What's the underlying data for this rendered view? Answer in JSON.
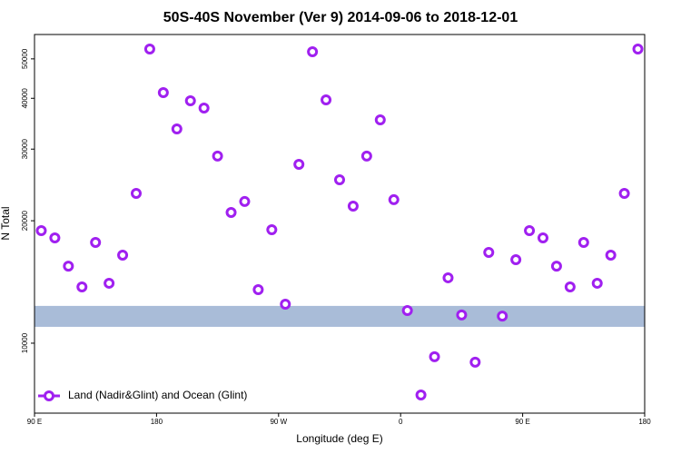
{
  "chart_data": {
    "type": "scatter",
    "title": "50S-40S November (Ver 9)   2014-09-06 to 2018-12-01",
    "x_label": "Longitude (deg E)",
    "y_label": "N Total",
    "y_log": true,
    "xlim": [
      90,
      540
    ],
    "ylim": [
      6730,
      57400
    ],
    "xticks": [
      {
        "value": 90,
        "label": "90 E"
      },
      {
        "value": 180,
        "label": "180"
      },
      {
        "value": 270,
        "label": "90 W"
      },
      {
        "value": 360,
        "label": "0"
      },
      {
        "value": 450,
        "label": "90 E"
      },
      {
        "value": 540,
        "label": "180"
      }
    ],
    "yticks": [
      10000,
      20000,
      30000,
      40000,
      50000
    ],
    "shaded_band": [
      10970,
      12350
    ],
    "band_color": "#a9bcd8",
    "legend": "bottom-left",
    "series": [
      {
        "name": "Land (Nadir&Glint) and Ocean (Glint)",
        "color": "#a020f0",
        "x": [
          95,
          105,
          115,
          125,
          135,
          145,
          155,
          165,
          175,
          185,
          195,
          205,
          215,
          225,
          235,
          245,
          255,
          265,
          275,
          285,
          295,
          305,
          315,
          325,
          335,
          345,
          355,
          365,
          375,
          385,
          395,
          405,
          415,
          425,
          435,
          445,
          455,
          465,
          475,
          485,
          495,
          505,
          515,
          525,
          535
        ],
        "values": [
          18910,
          18150,
          15470,
          13750,
          17690,
          14040,
          16460,
          23350,
          52870,
          41300,
          33630,
          39450,
          37850,
          28840,
          20960,
          22300,
          13540,
          19010,
          12470,
          27530,
          52060,
          39650,
          25220,
          21730,
          28840,
          35400,
          22530,
          12030,
          7460,
          9260,
          14480,
          11730,
          8980,
          16720,
          11660,
          16040,
          18910,
          18150,
          15470,
          13750,
          17690,
          14040,
          16460,
          23350,
          52870
        ]
      }
    ]
  }
}
